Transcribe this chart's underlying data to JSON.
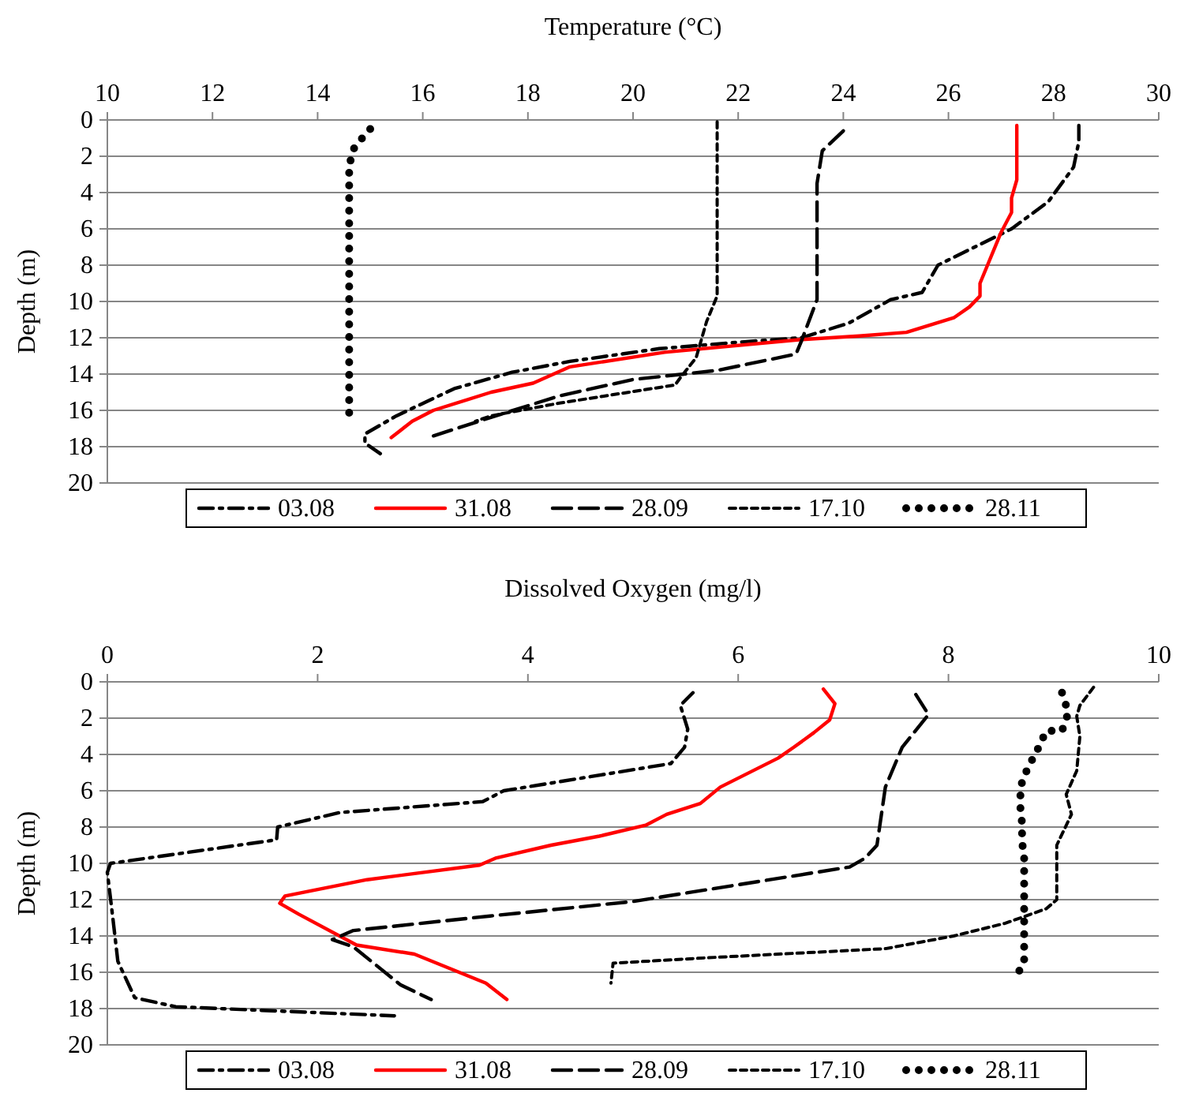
{
  "chart_data": [
    {
      "type": "line",
      "xlabel": "Temperature (°C)",
      "ylabel": "Depth (m)",
      "xlim": [
        10,
        30
      ],
      "xticks": [
        10,
        12,
        14,
        16,
        18,
        20,
        22,
        24,
        26,
        28,
        30
      ],
      "ylim": [
        20,
        0
      ],
      "yticks": [
        0,
        2,
        4,
        6,
        8,
        10,
        12,
        14,
        16,
        18,
        20
      ],
      "grid": "y",
      "legend": "bottom",
      "series": [
        {
          "name": "03.08",
          "color": "#000000",
          "line_style": "dashdot",
          "x": [
            28.48,
            28.48,
            28.38,
            27.9,
            27.2,
            25.8,
            25.5,
            24.9,
            24.1,
            23.2,
            22.2,
            20.5,
            18.8,
            17.7,
            16.6,
            15.5,
            14.9,
            14.9,
            15.2
          ],
          "values": [
            0.3,
            1.2,
            2.6,
            4.5,
            6.0,
            8.0,
            9.5,
            9.9,
            11.2,
            12.0,
            12.2,
            12.6,
            13.3,
            13.9,
            14.8,
            16.3,
            17.3,
            17.8,
            18.4
          ]
        },
        {
          "name": "31.08",
          "color": "#ff0000",
          "line_style": "solid",
          "x": [
            27.3,
            27.3,
            27.2,
            27.2,
            27.0,
            26.6,
            26.6,
            26.4,
            26.1,
            25.2,
            24.3,
            23.2,
            20.6,
            18.8,
            18.1,
            17.3,
            16.2,
            15.8,
            15.4
          ],
          "values": [
            0.3,
            3.3,
            4.3,
            5.1,
            6.2,
            9.0,
            9.7,
            10.3,
            10.9,
            11.7,
            11.9,
            12.1,
            12.8,
            13.6,
            14.5,
            15.0,
            16.0,
            16.6,
            17.5
          ]
        },
        {
          "name": "28.09",
          "color": "#000000",
          "line_style": "longdash",
          "x": [
            24.0,
            23.6,
            23.5,
            23.5,
            23.2,
            23.1,
            21.6,
            20.0,
            18.6,
            17.5,
            16.1
          ],
          "values": [
            0.6,
            1.7,
            3.5,
            9.9,
            12.2,
            12.9,
            13.8,
            14.3,
            15.2,
            16.2,
            17.5
          ]
        },
        {
          "name": "17.10",
          "color": "#000000",
          "line_style": "dashed",
          "x": [
            21.6,
            21.6,
            21.4,
            21.2,
            20.9,
            20.8,
            18.6,
            17.3,
            17.0
          ],
          "values": [
            0.1,
            9.7,
            11.1,
            13.1,
            14.2,
            14.6,
            15.6,
            16.3,
            16.6
          ]
        },
        {
          "name": "28.11",
          "color": "#000000",
          "line_style": "dotted",
          "x": [
            15.0,
            14.7,
            14.6,
            14.6
          ],
          "values": [
            0.5,
            1.5,
            2.5,
            16.3
          ]
        }
      ]
    },
    {
      "type": "line",
      "xlabel": "Dissolved Oxygen (mg/l)",
      "ylabel": "Depth (m)",
      "xlim": [
        0,
        10
      ],
      "xticks": [
        0,
        2,
        4,
        6,
        8,
        10
      ],
      "ylim": [
        20,
        0
      ],
      "yticks": [
        0,
        2,
        4,
        6,
        8,
        10,
        12,
        14,
        16,
        18,
        20
      ],
      "grid": "y",
      "legend": "bottom",
      "series": [
        {
          "name": "03.08",
          "color": "#000000",
          "line_style": "dashdot",
          "x": [
            5.57,
            5.45,
            5.52,
            5.49,
            5.36,
            3.77,
            3.57,
            2.21,
            1.62,
            1.61,
            0.03,
            0.0,
            0.05,
            0.1,
            0.26,
            0.65,
            2.73
          ],
          "values": [
            0.6,
            1.3,
            2.6,
            3.6,
            4.5,
            6.0,
            6.6,
            7.2,
            8.0,
            8.7,
            10.0,
            10.5,
            12.9,
            15.4,
            17.4,
            17.9,
            18.4
          ]
        },
        {
          "name": "31.08",
          "color": "#ff0000",
          "line_style": "solid",
          "x": [
            6.81,
            6.92,
            6.87,
            6.72,
            6.53,
            6.38,
            5.83,
            5.64,
            5.32,
            5.12,
            4.68,
            4.22,
            3.7,
            3.54,
            2.47,
            1.69,
            1.64,
            1.82,
            2.37,
            2.92,
            3.6,
            3.8
          ],
          "values": [
            0.4,
            1.2,
            2.1,
            2.8,
            3.6,
            4.2,
            5.8,
            6.7,
            7.3,
            7.9,
            8.5,
            9.0,
            9.7,
            10.1,
            10.9,
            11.8,
            12.2,
            12.8,
            14.5,
            15.0,
            16.6,
            17.5
          ]
        },
        {
          "name": "28.09",
          "color": "#000000",
          "line_style": "longdash",
          "x": [
            7.69,
            7.81,
            7.56,
            7.4,
            7.32,
            7.21,
            7.06,
            5.0,
            3.64,
            2.34,
            2.14,
            2.34,
            2.79,
            3.08
          ],
          "values": [
            0.7,
            1.8,
            3.6,
            5.8,
            9.0,
            9.7,
            10.2,
            12.1,
            12.9,
            13.7,
            14.2,
            14.6,
            16.7,
            17.5
          ]
        },
        {
          "name": "17.10",
          "color": "#000000",
          "line_style": "dashed",
          "x": [
            9.38,
            9.25,
            9.22,
            9.25,
            9.22,
            9.12,
            9.17,
            9.03,
            9.03,
            9.03,
            8.93,
            8.54,
            8.05,
            7.4,
            5.71,
            4.81,
            4.79
          ],
          "values": [
            0.3,
            1.3,
            1.9,
            3.0,
            4.9,
            6.2,
            7.3,
            9.0,
            10.1,
            12.0,
            12.5,
            13.3,
            14.0,
            14.7,
            15.2,
            15.5,
            16.6
          ]
        },
        {
          "name": "28.11",
          "color": "#000000",
          "line_style": "dotted",
          "x": [
            9.08,
            9.14,
            9.08,
            8.93,
            8.85,
            8.75,
            8.69,
            8.68,
            8.7,
            8.7,
            8.72,
            8.72,
            8.62
          ],
          "values": [
            0.6,
            1.7,
            2.7,
            2.7,
            3.7,
            4.8,
            5.7,
            6.7,
            7.8,
            8.8,
            9.7,
            15.5,
            16.4
          ]
        }
      ]
    }
  ]
}
